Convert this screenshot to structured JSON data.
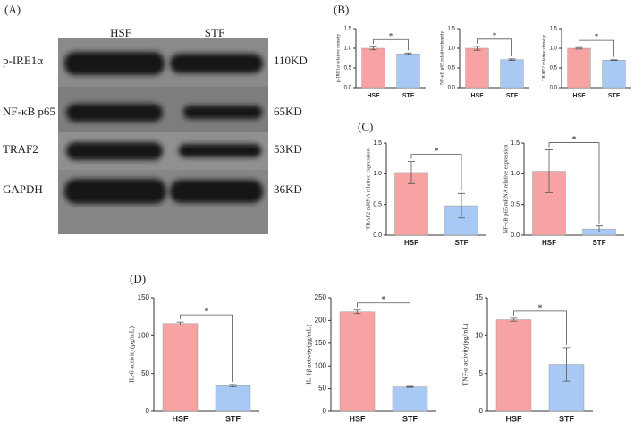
{
  "blot": {
    "label": "(A)",
    "columns": [
      "HSF",
      "STF"
    ],
    "rows": [
      {
        "name": "p-IRE1α",
        "size": "110KD"
      },
      {
        "name": "NF-κB p65",
        "size": "65KD"
      },
      {
        "name": "TRAF2",
        "size": "53KD"
      },
      {
        "name": "GAPDH",
        "size": "36KD"
      }
    ]
  },
  "panel_labels": [
    "(B)",
    "(C)",
    "(D)"
  ],
  "chart_data": [
    {
      "type": "bar",
      "ylabel": "p-IRE1α relative density",
      "categories": [
        "HSF",
        "STF"
      ],
      "values": [
        1.0,
        0.86
      ],
      "errors": [
        0.04,
        0.02
      ],
      "colors": [
        "#f7a3a3",
        "#a7c9f3"
      ],
      "ylim": [
        0,
        1.5
      ],
      "yticks": [
        {
          "value": 0,
          "label": "0.0"
        },
        0.5,
        {
          "value": 1,
          "label": "1.0"
        },
        1.5
      ],
      "annotation": "*"
    },
    {
      "type": "bar",
      "ylabel": "NF-κB p65 relative density",
      "categories": [
        "HSF",
        "STF"
      ],
      "values": [
        1.0,
        0.71
      ],
      "errors": [
        0.05,
        0.02
      ],
      "colors": [
        "#f7a3a3",
        "#a7c9f3"
      ],
      "ylim": [
        0,
        1.5
      ],
      "yticks": [
        {
          "value": 0,
          "label": "0.0"
        },
        0.5,
        {
          "value": 1,
          "label": "1.0"
        },
        1.5
      ],
      "annotation": "*"
    },
    {
      "type": "bar",
      "ylabel": "TRAF2 relative density",
      "categories": [
        "HSF",
        "STF"
      ],
      "values": [
        1.0,
        0.7
      ],
      "errors": [
        0.02,
        0.01
      ],
      "colors": [
        "#f7a3a3",
        "#a7c9f3"
      ],
      "ylim": [
        0,
        1.5
      ],
      "yticks": [
        {
          "value": 0,
          "label": "0.0"
        },
        0.5,
        {
          "value": 1,
          "label": "1.0"
        },
        1.5
      ],
      "annotation": "*"
    },
    {
      "type": "bar",
      "ylabel": "TRAF2 mRNA relative expression",
      "categories": [
        "HSF",
        "STF"
      ],
      "values": [
        1.02,
        0.48
      ],
      "errors": [
        0.18,
        0.2
      ],
      "colors": [
        "#f7a3a3",
        "#a7c9f3"
      ],
      "ylim": [
        0,
        1.5
      ],
      "yticks": [
        {
          "value": 0,
          "label": "0.0"
        },
        0.5,
        {
          "value": 1,
          "label": "1.0"
        },
        1.5
      ],
      "annotation": "*"
    },
    {
      "type": "bar",
      "ylabel": "NF-κB p65 mRNA relative expression",
      "categories": [
        "HSF",
        "STF"
      ],
      "values": [
        1.04,
        0.1
      ],
      "errors": [
        0.35,
        0.05
      ],
      "colors": [
        "#f7a3a3",
        "#a7c9f3"
      ],
      "ylim": [
        0,
        1.5
      ],
      "yticks": [
        {
          "value": 0,
          "label": "0.0"
        },
        0.5,
        {
          "value": 1,
          "label": "1.0"
        },
        1.5
      ],
      "annotation": "*"
    },
    {
      "type": "bar",
      "ylabel": "IL-6 activity(pg/mL)",
      "categories": [
        "HSF",
        "STF"
      ],
      "values": [
        116,
        34
      ],
      "errors": [
        2,
        1.5
      ],
      "colors": [
        "#f7a3a3",
        "#a7c9f3"
      ],
      "ylim": [
        0,
        150
      ],
      "yticks": [
        0,
        50,
        100,
        150
      ],
      "annotation": "*"
    },
    {
      "type": "bar",
      "ylabel": "IL-1β activity(pg/mL)",
      "categories": [
        "HSF",
        "STF"
      ],
      "values": [
        219,
        54
      ],
      "errors": [
        4,
        1
      ],
      "colors": [
        "#f7a3a3",
        "#a7c9f3"
      ],
      "ylim": [
        0,
        250
      ],
      "yticks": [
        0,
        50,
        100,
        150,
        200,
        250
      ],
      "annotation": "*"
    },
    {
      "type": "bar",
      "ylabel": "TNF-α activity(pg/mL)",
      "categories": [
        "HSF",
        "STF"
      ],
      "values": [
        12.1,
        6.2
      ],
      "errors": [
        0.2,
        2.2
      ],
      "colors": [
        "#f7a3a3",
        "#a7c9f3"
      ],
      "ylim": [
        0,
        15
      ],
      "yticks": [
        0,
        5,
        10,
        15
      ],
      "annotation": "*"
    }
  ]
}
